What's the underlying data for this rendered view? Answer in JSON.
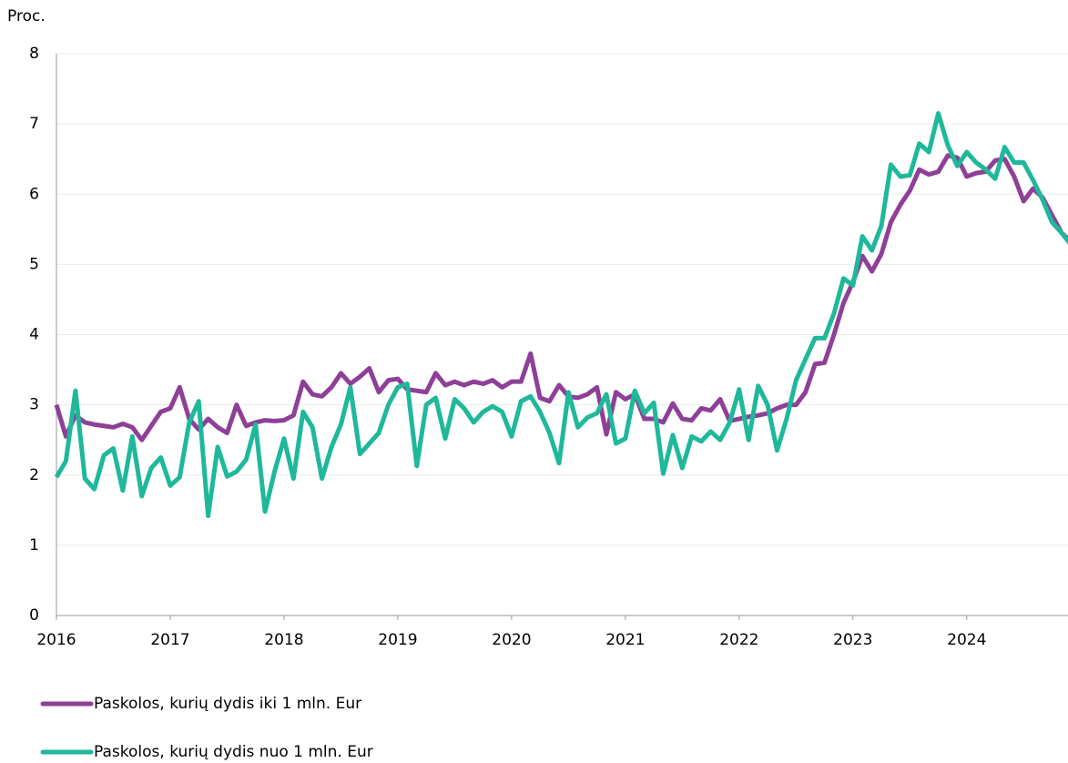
{
  "chart_data": {
    "type": "line",
    "y_axis_label": "Proc.",
    "x": [
      2016,
      2016.083,
      2016.167,
      2016.25,
      2016.333,
      2016.417,
      2016.5,
      2016.583,
      2016.667,
      2016.75,
      2016.833,
      2016.917,
      2017,
      2017.083,
      2017.167,
      2017.25,
      2017.333,
      2017.417,
      2017.5,
      2017.583,
      2017.667,
      2017.75,
      2017.833,
      2017.917,
      2018,
      2018.083,
      2018.167,
      2018.25,
      2018.333,
      2018.417,
      2018.5,
      2018.583,
      2018.667,
      2018.75,
      2018.833,
      2018.917,
      2019,
      2019.083,
      2019.167,
      2019.25,
      2019.333,
      2019.417,
      2019.5,
      2019.583,
      2019.667,
      2019.75,
      2019.833,
      2019.917,
      2020,
      2020.083,
      2020.167,
      2020.25,
      2020.333,
      2020.417,
      2020.5,
      2020.583,
      2020.667,
      2020.75,
      2020.833,
      2020.917,
      2021,
      2021.083,
      2021.167,
      2021.25,
      2021.333,
      2021.417,
      2021.5,
      2021.583,
      2021.667,
      2021.75,
      2021.833,
      2021.917,
      2022,
      2022.083,
      2022.167,
      2022.25,
      2022.333,
      2022.417,
      2022.5,
      2022.583,
      2022.667,
      2022.75,
      2022.833,
      2022.917,
      2023,
      2023.083,
      2023.167,
      2023.25,
      2023.333,
      2023.417,
      2023.5,
      2023.583,
      2023.667,
      2023.75,
      2023.833,
      2023.917,
      2024,
      2024.083,
      2024.167,
      2024.25,
      2024.333,
      2024.417,
      2024.5,
      2024.583,
      2024.667,
      2024.75,
      2024.833,
      2024.917
    ],
    "series": [
      {
        "name": "Paskolos, kurių dydis iki 1 mln. Eur",
        "color": "#8e3f98",
        "values": [
          3.0,
          2.55,
          2.85,
          2.75,
          2.72,
          2.7,
          2.68,
          2.73,
          2.68,
          2.5,
          2.7,
          2.9,
          2.95,
          3.25,
          2.8,
          2.65,
          2.8,
          2.68,
          2.6,
          3.0,
          2.7,
          2.75,
          2.78,
          2.77,
          2.78,
          2.85,
          3.33,
          3.15,
          3.12,
          3.25,
          3.45,
          3.3,
          3.4,
          3.52,
          3.18,
          3.35,
          3.37,
          3.22,
          3.2,
          3.18,
          3.45,
          3.28,
          3.33,
          3.28,
          3.33,
          3.3,
          3.35,
          3.25,
          3.33,
          3.33,
          3.73,
          3.1,
          3.05,
          3.28,
          3.12,
          3.1,
          3.15,
          3.25,
          2.58,
          3.18,
          3.08,
          3.15,
          2.8,
          2.8,
          2.75,
          3.02,
          2.8,
          2.78,
          2.95,
          2.92,
          3.08,
          2.77,
          2.8,
          2.83,
          2.85,
          2.88,
          2.95,
          3.0,
          3.0,
          3.18,
          3.58,
          3.6,
          4.0,
          4.45,
          4.75,
          5.12,
          4.9,
          5.15,
          5.6,
          5.85,
          6.05,
          6.35,
          6.28,
          6.32,
          6.55,
          6.52,
          6.25,
          6.3,
          6.32,
          6.48,
          6.5,
          6.25,
          5.9,
          6.08,
          5.95,
          5.7,
          5.45,
          5.32
        ]
      },
      {
        "name": "Paskolos, kurių dydis nuo 1 mln. Eur",
        "color": "#1fb89a",
        "values": [
          1.97,
          2.2,
          3.2,
          1.95,
          1.8,
          2.28,
          2.38,
          1.78,
          2.55,
          1.7,
          2.1,
          2.25,
          1.85,
          1.97,
          2.75,
          3.05,
          1.42,
          2.4,
          1.98,
          2.05,
          2.22,
          2.72,
          1.48,
          2.05,
          2.52,
          1.95,
          2.9,
          2.68,
          1.95,
          2.4,
          2.72,
          3.25,
          2.3,
          2.45,
          2.6,
          3.0,
          3.25,
          3.3,
          2.13,
          3.0,
          3.1,
          2.52,
          3.08,
          2.95,
          2.75,
          2.9,
          2.98,
          2.9,
          2.55,
          3.05,
          3.12,
          2.9,
          2.6,
          2.17,
          3.18,
          2.68,
          2.82,
          2.88,
          3.15,
          2.45,
          2.52,
          3.2,
          2.88,
          3.03,
          2.02,
          2.57,
          2.1,
          2.55,
          2.48,
          2.62,
          2.5,
          2.75,
          3.22,
          2.5,
          3.27,
          3.0,
          2.35,
          2.8,
          3.35,
          3.65,
          3.95,
          3.95,
          4.3,
          4.8,
          4.7,
          5.4,
          5.2,
          5.55,
          6.42,
          6.25,
          6.27,
          6.72,
          6.6,
          7.15,
          6.7,
          6.4,
          6.6,
          6.45,
          6.35,
          6.22,
          6.67,
          6.45,
          6.45,
          6.2,
          5.92,
          5.6,
          5.45,
          5.28
        ]
      }
    ],
    "xlim": [
      2016,
      2024.89
    ],
    "xticks": [
      2016,
      2017,
      2018,
      2019,
      2020,
      2021,
      2022,
      2023,
      2024
    ],
    "ylim": [
      0,
      8
    ],
    "yticks": [
      0,
      1,
      2,
      3,
      4,
      5,
      6,
      7,
      8
    ],
    "grid": true
  }
}
